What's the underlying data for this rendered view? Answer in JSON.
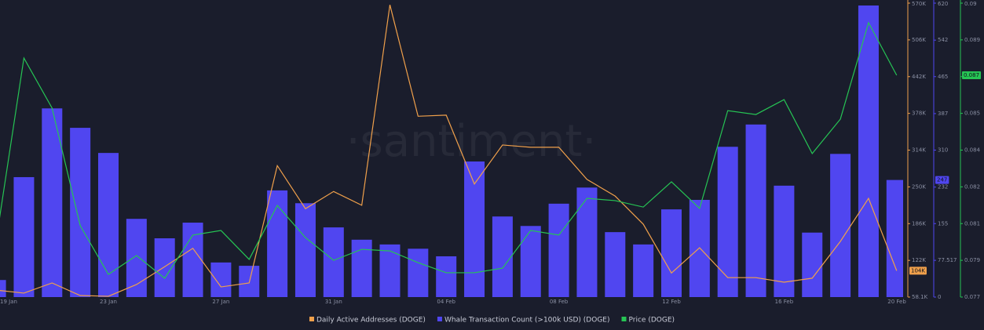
{
  "chart_data": {
    "type": "combo",
    "watermark": "·santiment·",
    "categories": [
      "19 Jan",
      null,
      null,
      null,
      "23 Jan",
      null,
      null,
      null,
      "27 Jan",
      null,
      null,
      null,
      "31 Jan",
      null,
      null,
      null,
      "04 Feb",
      null,
      null,
      null,
      "08 Feb",
      null,
      null,
      null,
      "12 Feb",
      null,
      null,
      null,
      "16 Feb",
      null,
      null,
      null,
      "20 Feb"
    ],
    "ylim": [
      58100,
      570000
    ],
    "yticks": [
      {
        "value": 58100,
        "label": "58.1K"
      },
      {
        "value": 122000,
        "label": "122K"
      },
      {
        "value": 186000,
        "label": "186K"
      },
      {
        "value": 250000,
        "label": "250K"
      },
      {
        "value": 314000,
        "label": "314K"
      },
      {
        "value": 378000,
        "label": "378K"
      },
      {
        "value": 442000,
        "label": "442K"
      },
      {
        "value": 506000,
        "label": "506K"
      },
      {
        "value": 570000,
        "label": "570K"
      }
    ],
    "y2lim": [
      0,
      620
    ],
    "y2ticks": [
      0,
      77.517,
      155,
      232,
      310,
      387,
      465,
      542,
      620
    ],
    "y3lim": [
      0.0774,
      0.0902
    ],
    "y3ticks": [
      {
        "value": 0.0774,
        "label": "0.077"
      },
      0.079,
      {
        "value": 0.0806,
        "label": "0.081"
      },
      {
        "value": 0.0822,
        "label": "0.082"
      },
      {
        "value": 0.0838,
        "label": "0.084"
      },
      {
        "value": 0.0854,
        "label": "0.085"
      },
      0.087,
      {
        "value": 0.0886,
        "label": "0.089"
      },
      {
        "value": 0.0902,
        "label": "0.09"
      }
    ],
    "series": [
      {
        "name": "Daily Active Addresses (DOGE)",
        "type": "line",
        "color": "#f0a04b",
        "axis": "y",
        "last_label": "104K",
        "values": [
          70400,
          65000,
          82700,
          60800,
          59500,
          80000,
          111000,
          143000,
          75800,
          82700,
          287000,
          212000,
          242000,
          218000,
          567000,
          373000,
          375000,
          255000,
          323000,
          319000,
          319000,
          263000,
          234000,
          185000,
          100000,
          144000,
          92000,
          92000,
          84000,
          91000,
          155000,
          230000,
          104000
        ]
      },
      {
        "name": "Whale Transaction Count (>100k USD) (DOGE)",
        "type": "bar",
        "color": "#5046f0",
        "axis": "y2",
        "last_label": "247",
        "values": [
          36,
          253,
          398,
          357,
          304,
          165,
          124,
          157,
          73,
          66,
          225,
          198,
          147,
          121,
          111,
          102,
          86,
          286,
          170,
          150,
          197,
          231,
          137,
          111,
          185,
          205,
          317,
          364,
          235,
          136,
          302,
          615,
          247
        ]
      },
      {
        "name": "Price (DOGE)",
        "type": "line",
        "color": "#26c454",
        "axis": "y3",
        "last_label": "0.087",
        "values": [
          0.07976,
          0.08781,
          0.08563,
          0.08051,
          0.07839,
          0.07921,
          0.07822,
          0.0801,
          0.0803,
          0.07904,
          0.08139,
          0.07999,
          0.079,
          0.07948,
          0.07941,
          0.0789,
          0.07846,
          0.07846,
          0.07866,
          0.0803,
          0.0801,
          0.0817,
          0.0816,
          0.08132,
          0.08242,
          0.08126,
          0.08552,
          0.08535,
          0.086,
          0.08365,
          0.08515,
          0.08935,
          0.08706
        ]
      }
    ]
  }
}
